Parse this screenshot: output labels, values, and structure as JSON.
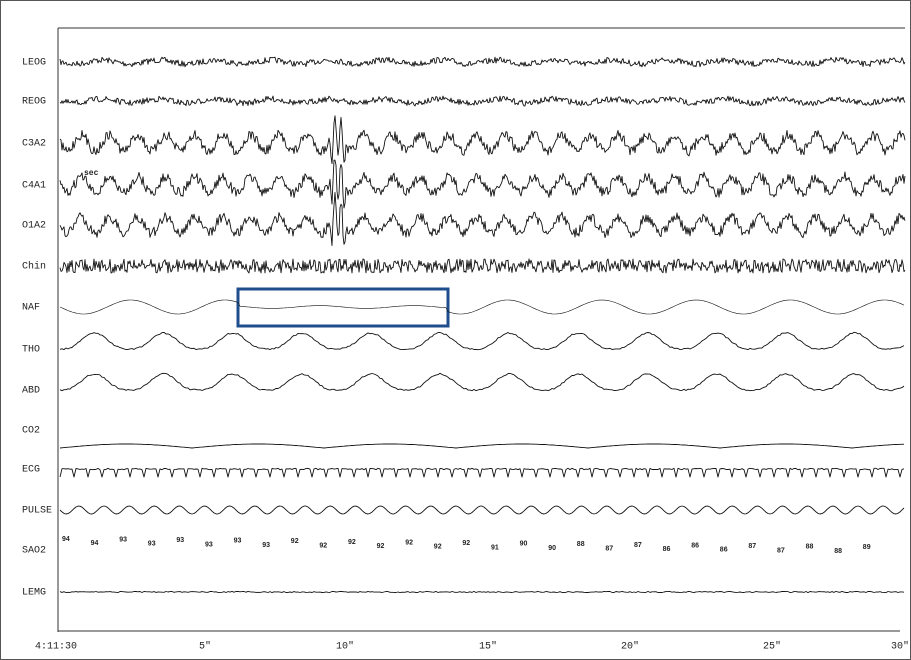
{
  "channels": [
    "LEOG",
    "REOG",
    "C3A2",
    "C4A1",
    "O1A2",
    "Chin",
    "NAF",
    "THO",
    "ABD",
    "CO2",
    "ECG",
    "PULSE",
    "SAO2",
    "LEMG"
  ],
  "annotation": "sec",
  "time_labels": [
    "4:11:30",
    "5\"",
    "10\"",
    "15\"",
    "20\"",
    "25\"",
    "30\""
  ],
  "sao2_values": [
    "94",
    "94",
    "93",
    "93",
    "93",
    "93",
    "93",
    "93",
    "92",
    "92",
    "92",
    "92",
    "92",
    "92",
    "92",
    "91",
    "90",
    "90",
    "88",
    "87",
    "87",
    "86",
    "86",
    "86",
    "87",
    "87",
    "88",
    "88",
    "89"
  ]
}
